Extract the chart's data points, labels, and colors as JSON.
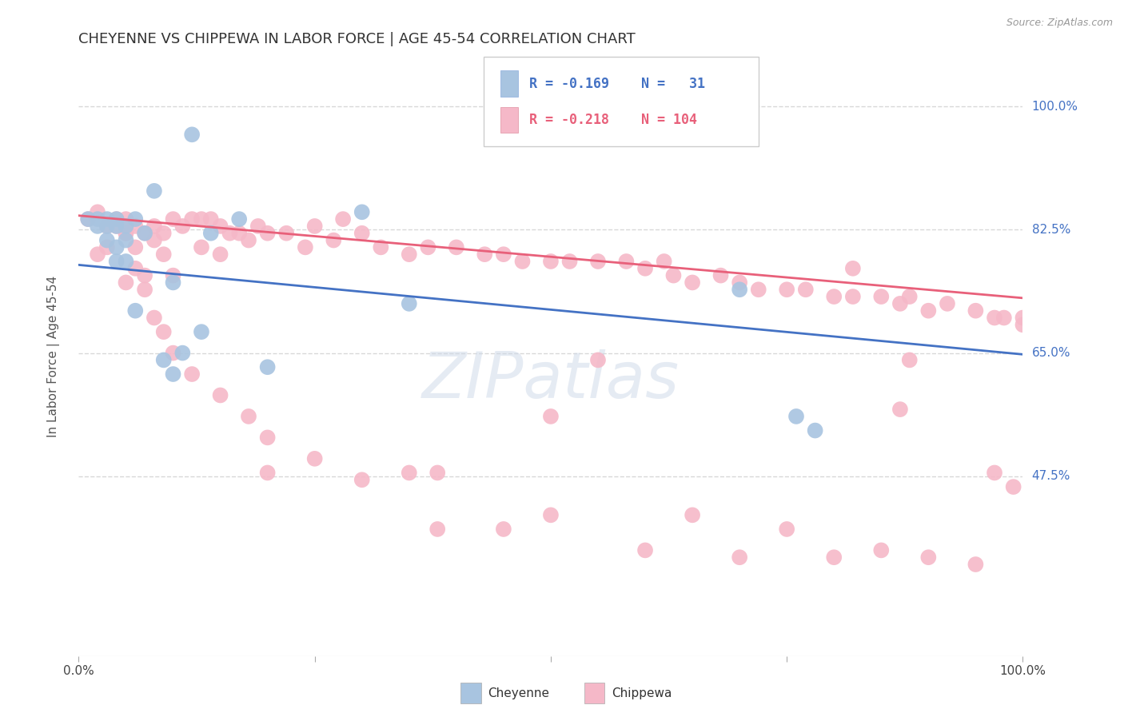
{
  "title": "CHEYENNE VS CHIPPEWA IN LABOR FORCE | AGE 45-54 CORRELATION CHART",
  "source": "Source: ZipAtlas.com",
  "ylabel": "In Labor Force | Age 45-54",
  "ytick_labels": [
    "100.0%",
    "82.5%",
    "65.0%",
    "47.5%"
  ],
  "ytick_values": [
    1.0,
    0.825,
    0.65,
    0.475
  ],
  "xlim": [
    0.0,
    1.0
  ],
  "ylim": [
    0.22,
    1.07
  ],
  "cheyenne_color": "#a8c4e0",
  "chippewa_color": "#f5b8c8",
  "cheyenne_line_color": "#4472c4",
  "chippewa_line_color": "#e8607a",
  "cheyenne_line_start": 0.775,
  "cheyenne_line_end": 0.648,
  "chippewa_line_start": 0.845,
  "chippewa_line_end": 0.728,
  "cheyenne_scatter_x": [
    0.01,
    0.02,
    0.02,
    0.03,
    0.03,
    0.03,
    0.04,
    0.04,
    0.04,
    0.04,
    0.05,
    0.05,
    0.05,
    0.06,
    0.06,
    0.07,
    0.08,
    0.09,
    0.1,
    0.1,
    0.11,
    0.12,
    0.13,
    0.14,
    0.17,
    0.2,
    0.3,
    0.35,
    0.7,
    0.76,
    0.78
  ],
  "cheyenne_scatter_y": [
    0.84,
    0.84,
    0.83,
    0.84,
    0.83,
    0.81,
    0.84,
    0.83,
    0.8,
    0.78,
    0.83,
    0.81,
    0.78,
    0.84,
    0.71,
    0.82,
    0.88,
    0.64,
    0.75,
    0.62,
    0.65,
    0.96,
    0.68,
    0.82,
    0.84,
    0.63,
    0.85,
    0.72,
    0.74,
    0.56,
    0.54
  ],
  "chippewa_scatter_x": [
    0.01,
    0.02,
    0.02,
    0.03,
    0.03,
    0.04,
    0.04,
    0.05,
    0.05,
    0.05,
    0.06,
    0.06,
    0.07,
    0.07,
    0.08,
    0.08,
    0.09,
    0.09,
    0.1,
    0.1,
    0.11,
    0.12,
    0.13,
    0.13,
    0.14,
    0.15,
    0.15,
    0.16,
    0.17,
    0.18,
    0.19,
    0.2,
    0.22,
    0.24,
    0.25,
    0.27,
    0.28,
    0.3,
    0.32,
    0.35,
    0.37,
    0.4,
    0.43,
    0.45,
    0.47,
    0.5,
    0.52,
    0.55,
    0.58,
    0.6,
    0.63,
    0.65,
    0.68,
    0.7,
    0.72,
    0.75,
    0.77,
    0.8,
    0.82,
    0.85,
    0.87,
    0.88,
    0.9,
    0.92,
    0.95,
    0.97,
    0.98,
    1.0,
    1.0,
    0.05,
    0.06,
    0.07,
    0.08,
    0.09,
    0.1,
    0.12,
    0.15,
    0.18,
    0.2,
    0.25,
    0.3,
    0.35,
    0.45,
    0.5,
    0.6,
    0.65,
    0.7,
    0.75,
    0.8,
    0.85,
    0.9,
    0.95,
    0.97,
    0.99,
    0.2,
    0.82,
    0.87,
    0.88,
    0.62,
    0.38,
    0.5,
    0.55,
    0.38
  ],
  "chippewa_scatter_y": [
    0.84,
    0.85,
    0.79,
    0.83,
    0.8,
    0.84,
    0.83,
    0.84,
    0.82,
    0.75,
    0.83,
    0.8,
    0.82,
    0.76,
    0.83,
    0.81,
    0.82,
    0.79,
    0.84,
    0.76,
    0.83,
    0.84,
    0.84,
    0.8,
    0.84,
    0.83,
    0.79,
    0.82,
    0.82,
    0.81,
    0.83,
    0.82,
    0.82,
    0.8,
    0.83,
    0.81,
    0.84,
    0.82,
    0.8,
    0.79,
    0.8,
    0.8,
    0.79,
    0.79,
    0.78,
    0.78,
    0.78,
    0.78,
    0.78,
    0.77,
    0.76,
    0.75,
    0.76,
    0.75,
    0.74,
    0.74,
    0.74,
    0.73,
    0.73,
    0.73,
    0.72,
    0.73,
    0.71,
    0.72,
    0.71,
    0.7,
    0.7,
    0.7,
    0.69,
    0.82,
    0.77,
    0.74,
    0.7,
    0.68,
    0.65,
    0.62,
    0.59,
    0.56,
    0.53,
    0.5,
    0.47,
    0.48,
    0.4,
    0.42,
    0.37,
    0.42,
    0.36,
    0.4,
    0.36,
    0.37,
    0.36,
    0.35,
    0.48,
    0.46,
    0.48,
    0.77,
    0.57,
    0.64,
    0.78,
    0.48,
    0.56,
    0.64,
    0.4
  ],
  "background_color": "#ffffff",
  "grid_color": "#d8d8d8"
}
